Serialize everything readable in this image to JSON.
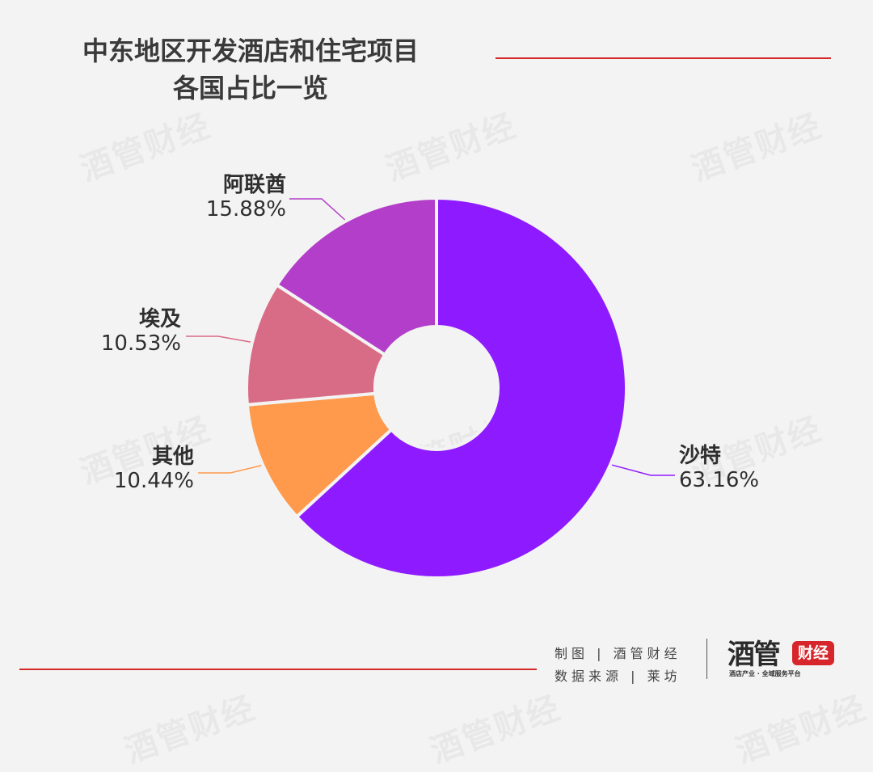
{
  "title_lines": [
    "中东地区开发酒店和住宅项目",
    "各国占比一览"
  ],
  "watermark_text": "酒管财经",
  "credits": {
    "line1": "制图 | 酒管财经",
    "line2": "数据来源 | 莱坊"
  },
  "logo": {
    "main": "酒管",
    "badge": "财经",
    "tagline": "酒店产业 · 全域服务平台"
  },
  "colors": {
    "background": "#f4f3f3",
    "accent_line": "#d62a2a"
  },
  "chart_data": {
    "type": "pie",
    "donut": true,
    "title": "中东地区开发酒店和住宅项目各国占比一览",
    "slices": [
      {
        "name": "沙特",
        "value": 63.16,
        "label": "63.16%",
        "color": "#8e1bff"
      },
      {
        "name": "其他",
        "value": 10.44,
        "label": "10.44%",
        "color": "#ff9a4d"
      },
      {
        "name": "埃及",
        "value": 10.53,
        "label": "10.53%",
        "color": "#d86b86"
      },
      {
        "name": "阿联酋",
        "value": 15.88,
        "label": "15.88%",
        "color": "#b23ec9"
      }
    ],
    "start": "top, clockwise",
    "legend": "none"
  }
}
